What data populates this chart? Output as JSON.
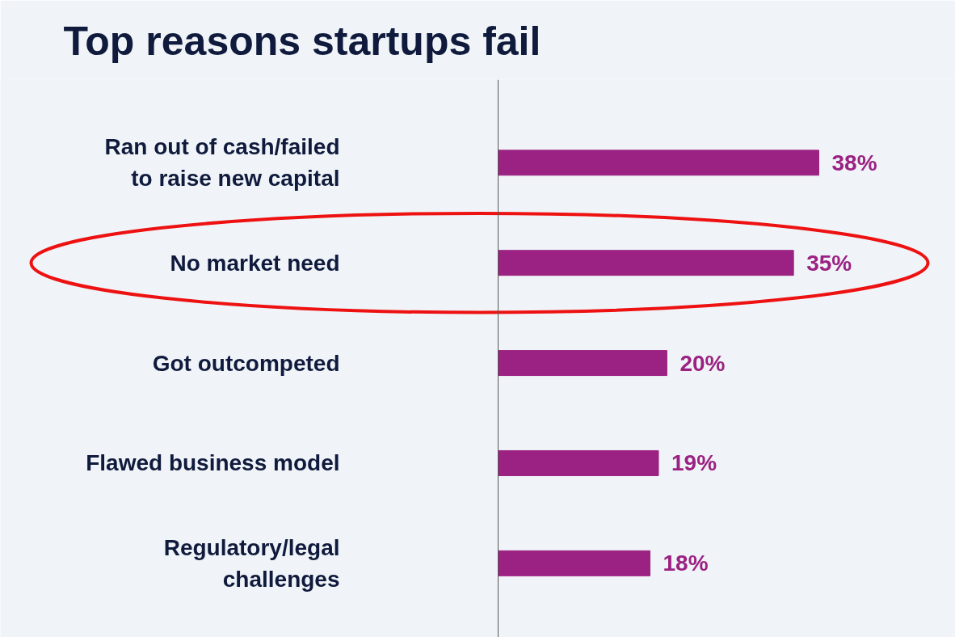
{
  "chart_data": {
    "type": "bar",
    "orientation": "horizontal",
    "title": "Top reasons startups fail",
    "categories": [
      "Ran out of cash/failed to raise new capital",
      "No market need",
      "Got outcompeted",
      "Flawed business model",
      "Regulatory/legal challenges"
    ],
    "values": [
      38,
      35,
      20,
      19,
      18
    ],
    "value_labels": [
      "38%",
      "35%",
      "20%",
      "19%",
      "18%"
    ],
    "color": "#9b2282",
    "grid": false
  }
}
